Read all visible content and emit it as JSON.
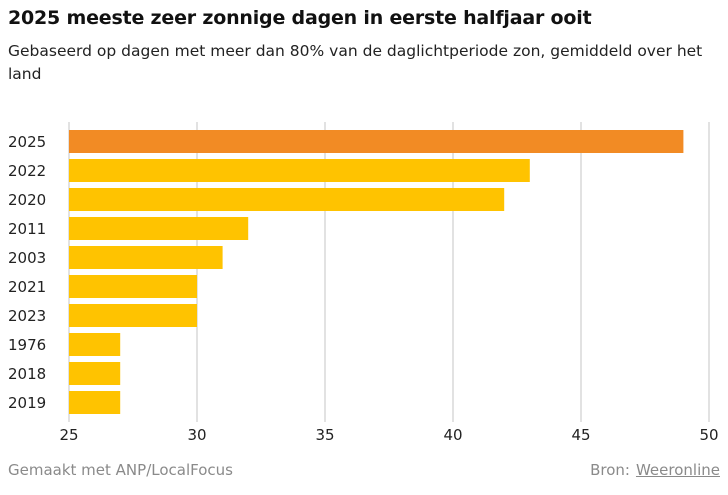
{
  "title": "2025 meeste zeer zonnige dagen in eerste halfjaar ooit",
  "subtitle": "Gebaseerd op dagen met meer dan 80% van de daglichtperiode zon, gemiddeld over het land",
  "footer": {
    "credit": "Gemaakt met ANP/LocalFocus",
    "source_label": "Bron:",
    "source_link": "Weeronline"
  },
  "colors": {
    "highlight": "#f28b24",
    "default": "#ffc300",
    "grid": "#d9d9d9"
  },
  "chart_data": {
    "type": "bar",
    "orientation": "horizontal",
    "categories": [
      "2025",
      "2022",
      "2020",
      "2011",
      "2003",
      "2021",
      "2023",
      "1976",
      "2018",
      "2019"
    ],
    "values": [
      49,
      43,
      42,
      32,
      31,
      30,
      30,
      27,
      27,
      27
    ],
    "highlight_index": 0,
    "xlim": [
      25,
      50
    ],
    "xticks": [
      "25",
      "30",
      "35",
      "40",
      "45",
      "50"
    ],
    "xlabel": "",
    "ylabel": "",
    "grid": "vertical"
  }
}
